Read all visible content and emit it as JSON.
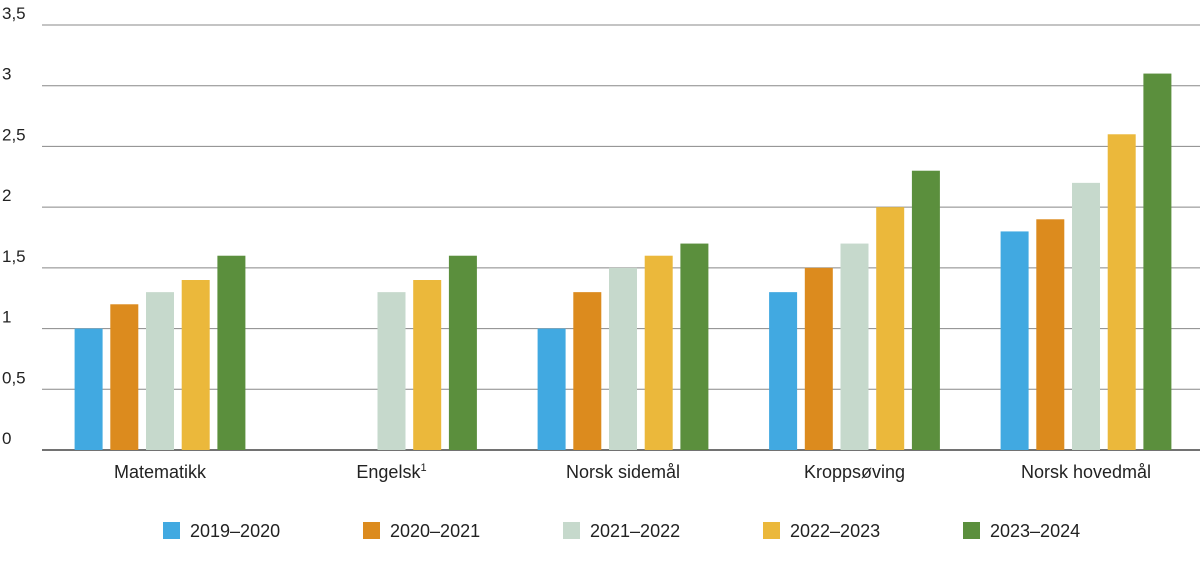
{
  "chart_data": {
    "type": "bar",
    "categories": [
      "Matematikk",
      "Engelsk",
      "Norsk sidemål",
      "Kroppsøving",
      "Norsk hovedmål"
    ],
    "category_superscripts": [
      "",
      "1",
      "",
      "",
      ""
    ],
    "series": [
      {
        "name": "2019–2020",
        "color": "#41a9e1",
        "values": [
          1.0,
          null,
          1.0,
          1.3,
          1.8
        ]
      },
      {
        "name": "2020–2021",
        "color": "#dc8b1e",
        "values": [
          1.2,
          null,
          1.3,
          1.5,
          1.9
        ]
      },
      {
        "name": "2021–2022",
        "color": "#c6d9cc",
        "values": [
          1.3,
          1.3,
          1.5,
          1.7,
          2.2
        ]
      },
      {
        "name": "2022–2023",
        "color": "#ebb83b",
        "values": [
          1.4,
          1.4,
          1.6,
          2.0,
          2.6
        ]
      },
      {
        "name": "2023–2024",
        "color": "#5b8f3d",
        "values": [
          1.6,
          1.6,
          1.7,
          2.3,
          3.1
        ]
      }
    ],
    "yticks": [
      "0",
      "0,5",
      "1",
      "1,5",
      "2",
      "2,5",
      "3",
      "3,5"
    ],
    "ylim": [
      0,
      3.5
    ],
    "grid": true,
    "legend_position": "bottom"
  }
}
